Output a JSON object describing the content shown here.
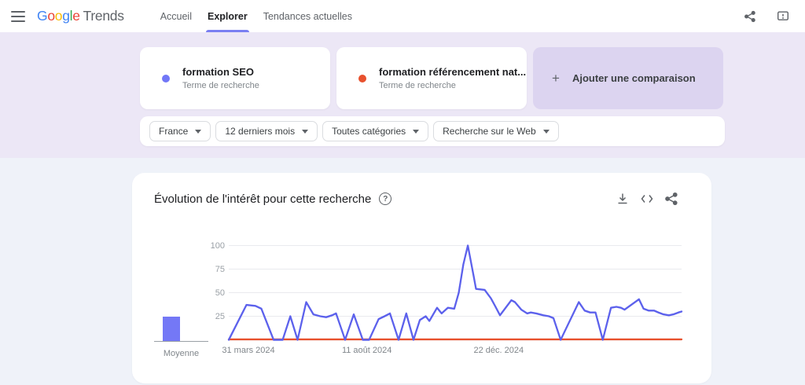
{
  "header": {
    "logo": {
      "letters": [
        {
          "char": "G",
          "color": "#4285F4"
        },
        {
          "char": "o",
          "color": "#EA4335"
        },
        {
          "char": "o",
          "color": "#FBBC05"
        },
        {
          "char": "g",
          "color": "#4285F4"
        },
        {
          "char": "l",
          "color": "#34A853"
        },
        {
          "char": "e",
          "color": "#EA4335"
        }
      ],
      "product": "Trends"
    },
    "nav": [
      {
        "label": "Accueil",
        "active": false
      },
      {
        "label": "Explorer",
        "active": true
      },
      {
        "label": "Tendances actuelles",
        "active": false
      }
    ]
  },
  "comparison": {
    "terms": [
      {
        "label": "formation SEO",
        "sublabel": "Terme de recherche",
        "color": "#7177f7"
      },
      {
        "label": "formation référencement nat...",
        "sublabel": "Terme de recherche",
        "color": "#e8512e"
      }
    ],
    "add_plus": "+",
    "add_label": "Ajouter une comparaison"
  },
  "filters": [
    {
      "label": "France"
    },
    {
      "label": "12 derniers mois"
    },
    {
      "label": "Toutes catégories"
    },
    {
      "label": "Recherche sur le Web"
    }
  ],
  "chart_card": {
    "title": "Évolution de l'intérêt pour cette recherche",
    "help_glyph": "?"
  },
  "chart_data": {
    "type": "line",
    "title": "Évolution de l'intérêt pour cette recherche",
    "ylim": [
      0,
      100
    ],
    "yticks": [
      25,
      50,
      75,
      100
    ],
    "grid": true,
    "average_label": "Moyenne",
    "xtick_labels": [
      {
        "label": "31 mars 2024",
        "pos_pct": -1.5,
        "align": "left"
      },
      {
        "label": "11 août 2024",
        "pos_pct": 30.5,
        "align": "center"
      },
      {
        "label": "22 déc. 2024",
        "pos_pct": 59.6,
        "align": "center"
      }
    ],
    "series": [
      {
        "name": "formation SEO",
        "color": "#5c61ec",
        "bar_color": "#7478f6",
        "average": 26,
        "points": [
          [
            0,
            0
          ],
          [
            3.9,
            37
          ],
          [
            5.9,
            36
          ],
          [
            7.2,
            33
          ],
          [
            9.9,
            0
          ],
          [
            11.9,
            0
          ],
          [
            13.6,
            25
          ],
          [
            15.2,
            0
          ],
          [
            17.1,
            40
          ],
          [
            18.7,
            27
          ],
          [
            20.2,
            25
          ],
          [
            21.5,
            24
          ],
          [
            22.8,
            26
          ],
          [
            23.7,
            28
          ],
          [
            25.7,
            0
          ],
          [
            27.6,
            27
          ],
          [
            29.6,
            0
          ],
          [
            31.0,
            0
          ],
          [
            33.1,
            22
          ],
          [
            34.4,
            25
          ],
          [
            35.6,
            28
          ],
          [
            37.5,
            0
          ],
          [
            39.2,
            28
          ],
          [
            40.8,
            0
          ],
          [
            42.2,
            21
          ],
          [
            43.5,
            25
          ],
          [
            44.3,
            20
          ],
          [
            46.0,
            34
          ],
          [
            47.0,
            28
          ],
          [
            48.4,
            34
          ],
          [
            49.8,
            33
          ],
          [
            50.8,
            50
          ],
          [
            51.8,
            80
          ],
          [
            52.8,
            100
          ],
          [
            54.1,
            67
          ],
          [
            54.6,
            54
          ],
          [
            56.5,
            53
          ],
          [
            57.9,
            44
          ],
          [
            58.8,
            36
          ],
          [
            59.9,
            26
          ],
          [
            62.4,
            42
          ],
          [
            63.2,
            40
          ],
          [
            64.6,
            32
          ],
          [
            65.9,
            28
          ],
          [
            66.7,
            29
          ],
          [
            67.9,
            28
          ],
          [
            69.5,
            26
          ],
          [
            70.7,
            25
          ],
          [
            71.7,
            23
          ],
          [
            73.3,
            0
          ],
          [
            77.3,
            40
          ],
          [
            78.6,
            31
          ],
          [
            79.8,
            29
          ],
          [
            81.0,
            29
          ],
          [
            82.6,
            0
          ],
          [
            84.4,
            34
          ],
          [
            85.6,
            35
          ],
          [
            86.6,
            34
          ],
          [
            87.4,
            32
          ],
          [
            90.6,
            43
          ],
          [
            91.6,
            33
          ],
          [
            92.7,
            31
          ],
          [
            93.9,
            31
          ],
          [
            94.9,
            29
          ],
          [
            96.0,
            27
          ],
          [
            97.2,
            26
          ],
          [
            98.2,
            27
          ],
          [
            99.3,
            29
          ],
          [
            100,
            30
          ]
        ]
      },
      {
        "name": "formation référencement nat...",
        "color": "#e8512e",
        "bar_color": "#e8512e",
        "average": 0,
        "points": [
          [
            0,
            0.5
          ],
          [
            100,
            0.5
          ]
        ]
      }
    ]
  }
}
